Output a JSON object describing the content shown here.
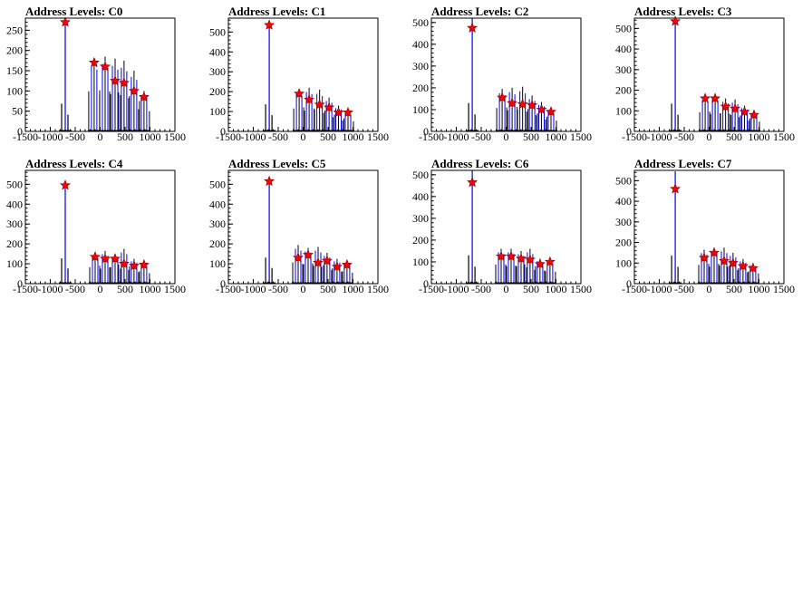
{
  "chart_data": [
    {
      "type": "bar",
      "title": "Address Levels: C0",
      "xlim": [
        -1500,
        1500
      ],
      "ylim": [
        0,
        280
      ],
      "xticks": [
        -1500,
        -1000,
        -500,
        0,
        500,
        1000,
        1500
      ],
      "yticks": [
        0,
        50,
        100,
        150,
        200,
        250
      ],
      "xtick_labels": [
        "-1500",
        "-1000",
        "-500",
        "0",
        "500",
        "1000",
        "1500"
      ],
      "ytick_labels": [
        "0",
        "50",
        "100",
        "150",
        "200",
        "250"
      ],
      "peaks_x": [
        -700,
        -120,
        100,
        300,
        480,
        680,
        880
      ],
      "peaks_y": [
        270,
        170,
        160,
        125,
        120,
        100,
        85
      ],
      "bar_heights": [
        275,
        180,
        185,
        180,
        175,
        150,
        100
      ]
    },
    {
      "type": "bar",
      "title": "Address Levels: C1",
      "xlim": [
        -1500,
        1500
      ],
      "ylim": [
        0,
        570
      ],
      "xticks": [
        -1500,
        -1000,
        -500,
        0,
        500,
        1000,
        1500
      ],
      "yticks": [
        0,
        100,
        200,
        300,
        400,
        500
      ],
      "xtick_labels": [
        "-1500",
        "-1000",
        "-500",
        "0",
        "500",
        "1000",
        "1500"
      ],
      "ytick_labels": [
        "0",
        "100",
        "200",
        "300",
        "400",
        "500"
      ],
      "peaks_x": [
        -680,
        -80,
        120,
        330,
        520,
        710,
        900
      ],
      "peaks_y": [
        535,
        190,
        160,
        135,
        120,
        95,
        95
      ],
      "bar_heights": [
        545,
        210,
        220,
        210,
        170,
        130,
        100
      ]
    },
    {
      "type": "bar",
      "title": "Address Levels: C2",
      "xlim": [
        -1500,
        1500
      ],
      "ylim": [
        0,
        520
      ],
      "xticks": [
        -1500,
        -1000,
        -500,
        0,
        500,
        1000,
        1500
      ],
      "yticks": [
        0,
        100,
        200,
        300,
        400,
        500
      ],
      "xtick_labels": [
        "-1500",
        "-1000",
        "-500",
        "0",
        "500",
        "1000",
        "1500"
      ],
      "ytick_labels": [
        "0",
        "100",
        "200",
        "300",
        "400",
        "500"
      ],
      "peaks_x": [
        -680,
        -80,
        120,
        330,
        520,
        710,
        900
      ],
      "peaks_y": [
        475,
        155,
        130,
        125,
        120,
        100,
        90
      ],
      "bar_heights": [
        520,
        195,
        200,
        205,
        165,
        135,
        100
      ]
    },
    {
      "type": "bar",
      "title": "Address Levels: C3",
      "xlim": [
        -1500,
        1500
      ],
      "ylim": [
        0,
        550
      ],
      "xticks": [
        -1500,
        -1000,
        -500,
        0,
        500,
        1000,
        1500
      ],
      "yticks": [
        0,
        100,
        200,
        300,
        400,
        500
      ],
      "xtick_labels": [
        "-1500",
        "-1000",
        "-500",
        "0",
        "500",
        "1000",
        "1500"
      ],
      "ytick_labels": [
        "0",
        "100",
        "200",
        "300",
        "400",
        "500"
      ],
      "peaks_x": [
        -680,
        -80,
        120,
        330,
        520,
        710,
        900
      ],
      "peaks_y": [
        535,
        160,
        160,
        120,
        110,
        95,
        80
      ],
      "bar_heights": [
        540,
        170,
        175,
        160,
        155,
        125,
        95
      ]
    },
    {
      "type": "bar",
      "title": "Address Levels: C4",
      "xlim": [
        -1500,
        1500
      ],
      "ylim": [
        0,
        570
      ],
      "xticks": [
        -1500,
        -1000,
        -500,
        0,
        500,
        1000,
        1500
      ],
      "yticks": [
        0,
        100,
        200,
        300,
        400,
        500
      ],
      "xtick_labels": [
        "-1500",
        "-1000",
        "-500",
        "0",
        "500",
        "1000",
        "1500"
      ],
      "ytick_labels": [
        "0",
        "100",
        "200",
        "300",
        "400",
        "500"
      ],
      "peaks_x": [
        -700,
        -100,
        100,
        300,
        480,
        680,
        880
      ],
      "peaks_y": [
        495,
        135,
        125,
        125,
        100,
        90,
        95
      ],
      "bar_heights": [
        510,
        150,
        165,
        150,
        175,
        125,
        105
      ]
    },
    {
      "type": "bar",
      "title": "Address Levels: C5",
      "xlim": [
        -1500,
        1500
      ],
      "ylim": [
        0,
        570
      ],
      "xticks": [
        -1500,
        -1000,
        -500,
        0,
        500,
        1000,
        1500
      ],
      "yticks": [
        0,
        100,
        200,
        300,
        400,
        500
      ],
      "xtick_labels": [
        "-1500",
        "-1000",
        "-500",
        "0",
        "500",
        "1000",
        "1500"
      ],
      "ytick_labels": [
        "0",
        "100",
        "200",
        "300",
        "400",
        "500"
      ],
      "peaks_x": [
        -680,
        -100,
        100,
        300,
        480,
        680,
        880
      ],
      "peaks_y": [
        515,
        130,
        145,
        105,
        115,
        85,
        95
      ],
      "bar_heights": [
        525,
        195,
        180,
        185,
        155,
        125,
        110
      ]
    },
    {
      "type": "bar",
      "title": "Address Levels: C6",
      "xlim": [
        -1500,
        1500
      ],
      "ylim": [
        0,
        520
      ],
      "xticks": [
        -1500,
        -1000,
        -500,
        0,
        500,
        1000,
        1500
      ],
      "yticks": [
        0,
        100,
        200,
        300,
        400,
        500
      ],
      "xtick_labels": [
        "-1500",
        "-1000",
        "-500",
        "0",
        "500",
        "1000",
        "1500"
      ],
      "ytick_labels": [
        "0",
        "100",
        "200",
        "300",
        "400",
        "500"
      ],
      "peaks_x": [
        -680,
        -100,
        100,
        300,
        480,
        680,
        880
      ],
      "peaks_y": [
        465,
        125,
        125,
        115,
        110,
        90,
        100
      ],
      "bar_heights": [
        520,
        160,
        160,
        150,
        160,
        115,
        110
      ]
    },
    {
      "type": "bar",
      "title": "Address Levels: C7",
      "xlim": [
        -1500,
        1500
      ],
      "ylim": [
        0,
        550
      ],
      "xticks": [
        -1500,
        -1000,
        -500,
        0,
        500,
        1000,
        1500
      ],
      "yticks": [
        0,
        100,
        200,
        300,
        400,
        500
      ],
      "xtick_labels": [
        "-1500",
        "-1000",
        "-500",
        "0",
        "500",
        "1000",
        "1500"
      ],
      "ytick_labels": [
        "0",
        "100",
        "200",
        "300",
        "400",
        "500"
      ],
      "peaks_x": [
        -680,
        -100,
        100,
        300,
        480,
        680,
        880
      ],
      "peaks_y": [
        460,
        125,
        150,
        110,
        100,
        85,
        75
      ],
      "bar_heights": [
        545,
        165,
        175,
        175,
        150,
        120,
        100
      ]
    }
  ],
  "style": {
    "bar_color": "#0000ff",
    "outline_color": "#000000",
    "marker_fill": "#ff0000",
    "marker_stroke": "#800000"
  }
}
